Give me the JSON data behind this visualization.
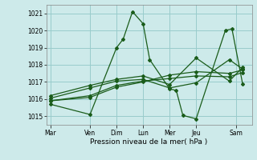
{
  "xlabel": "Pression niveau de la mer( hPa )",
  "ylim": [
    1014.5,
    1021.5
  ],
  "yticks": [
    1015,
    1016,
    1017,
    1018,
    1019,
    1020,
    1021
  ],
  "xtick_labels": [
    "Mar",
    "Ven",
    "Dim",
    "Lun",
    "Mer",
    "Jeu",
    "Sam"
  ],
  "xtick_positions": [
    0,
    3,
    5,
    7,
    9,
    11,
    14
  ],
  "xlim": [
    -0.3,
    15.2
  ],
  "background_color": "#cdeaea",
  "grid_color": "#99cccc",
  "line_color": "#1a5c1a",
  "lines": [
    {
      "x": [
        0,
        3,
        5,
        5.5,
        6.2,
        7,
        7.5,
        9,
        9.5,
        10,
        11,
        13.2,
        13.7,
        14.5
      ],
      "y": [
        1015.7,
        1015.1,
        1019.0,
        1019.5,
        1021.1,
        1020.4,
        1018.3,
        1016.6,
        1016.5,
        1015.05,
        1014.85,
        1020.0,
        1020.1,
        1016.9
      ]
    },
    {
      "x": [
        0,
        3,
        5,
        7,
        9,
        11,
        13.5,
        14.5
      ],
      "y": [
        1015.9,
        1016.1,
        1016.7,
        1017.0,
        1017.4,
        1017.6,
        1017.5,
        1017.7
      ]
    },
    {
      "x": [
        0,
        3,
        5,
        7,
        9,
        11,
        13.5,
        14.5
      ],
      "y": [
        1015.9,
        1016.2,
        1016.8,
        1017.05,
        1017.2,
        1017.35,
        1017.3,
        1017.55
      ]
    },
    {
      "x": [
        0,
        3,
        5,
        7,
        9,
        11,
        13.5,
        14.5
      ],
      "y": [
        1016.05,
        1016.65,
        1017.05,
        1017.15,
        1016.65,
        1016.95,
        1018.3,
        1017.75
      ]
    },
    {
      "x": [
        0,
        3,
        5,
        7,
        9,
        11,
        13.5,
        14.5
      ],
      "y": [
        1016.2,
        1016.8,
        1017.15,
        1017.35,
        1016.85,
        1018.4,
        1017.05,
        1017.85
      ]
    }
  ]
}
